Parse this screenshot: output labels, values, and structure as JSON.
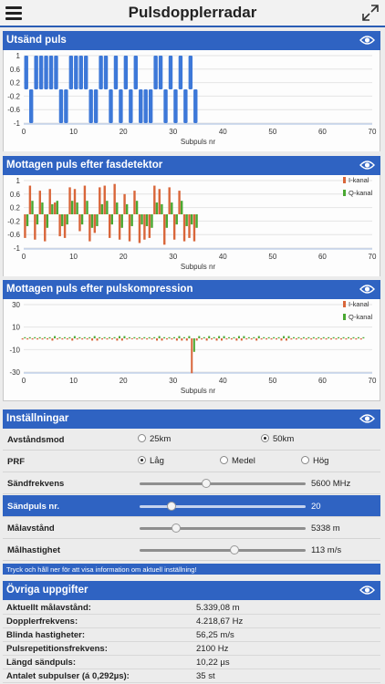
{
  "header": {
    "title": "Pulsdopplerradar"
  },
  "panels": {
    "tx": {
      "title": "Utsänd puls"
    },
    "rx": {
      "title": "Mottagen puls efter fasdetektor"
    },
    "comp": {
      "title": "Mottagen puls efter pulskompression"
    }
  },
  "colors": {
    "accent": "#2f63c2",
    "i_channel": "#d9663a",
    "q_channel": "#4aa832",
    "tx_pulse": "#3d78d8"
  },
  "chart_data": [
    {
      "type": "bar",
      "xlabel": "Subpuls nr",
      "xlim": [
        0,
        70
      ],
      "xticks": [
        0,
        10,
        20,
        30,
        40,
        50,
        60,
        70
      ],
      "yticks": [
        1,
        0.6,
        0.2,
        -0.2,
        -0.6,
        -1
      ],
      "ylim": [
        -1,
        1
      ],
      "series": [
        {
          "values": [
            1,
            -1,
            1,
            1,
            1,
            1,
            1,
            -1,
            -1,
            1,
            1,
            1,
            1,
            -1,
            -1,
            1,
            1,
            -1,
            1,
            -1,
            1,
            -1,
            1,
            -1,
            -1,
            -1,
            1,
            1,
            -1,
            1,
            -1,
            1,
            -1,
            1,
            -1
          ]
        }
      ]
    },
    {
      "type": "bar",
      "xlabel": "Subpuls nr",
      "xlim": [
        0,
        70
      ],
      "xticks": [
        0,
        10,
        20,
        30,
        40,
        50,
        60,
        70
      ],
      "yticks": [
        1,
        0.6,
        0.2,
        -0.2,
        -0.6,
        -1
      ],
      "ylim": [
        -1,
        1
      ],
      "legend": "top-right",
      "series": [
        {
          "name": "I-kanal",
          "values": [
            -0.7,
            0.85,
            -0.75,
            0.7,
            -0.8,
            0.75,
            0.35,
            -0.65,
            -0.7,
            0.8,
            0.75,
            -0.5,
            0.85,
            -0.8,
            -0.55,
            0.8,
            0.85,
            -0.7,
            0.9,
            -0.75,
            0.6,
            -0.8,
            0.7,
            -0.85,
            -0.75,
            -0.7,
            0.85,
            0.75,
            -0.9,
            0.8,
            -0.75,
            0.7,
            -0.8,
            -0.7,
            -0.8
          ]
        },
        {
          "name": "Q-kanal",
          "values": [
            -0.35,
            0.4,
            -0.3,
            0.35,
            -0.4,
            0.3,
            0.4,
            -0.35,
            -0.3,
            0.4,
            0.35,
            -0.3,
            0.4,
            -0.4,
            -0.35,
            0.3,
            0.4,
            -0.3,
            0.35,
            -0.4,
            0.3,
            -0.35,
            0.4,
            -0.3,
            -0.35,
            -0.4,
            0.35,
            0.3,
            -0.4,
            0.35,
            -0.3,
            0.4,
            -0.35,
            -0.3,
            -0.4
          ]
        }
      ]
    },
    {
      "type": "bar",
      "xlabel": "Subpuls nr",
      "xlim": [
        0,
        70
      ],
      "xticks": [
        0,
        10,
        20,
        30,
        40,
        50,
        60,
        70
      ],
      "yticks": [
        30,
        10,
        -10,
        -30
      ],
      "ylim": [
        -30,
        30
      ],
      "legend": "top-right",
      "series": [
        {
          "name": "I-kanal",
          "values": [
            -1,
            -1,
            -1,
            -1,
            -1,
            -1,
            -2,
            -1,
            -1,
            -1,
            -2,
            -1,
            -1,
            -1,
            -2,
            -2,
            -1,
            -1,
            -1,
            -2,
            -2,
            -1,
            0,
            -1,
            -1,
            -1,
            -1,
            -2,
            -2,
            -1,
            -1,
            -2,
            -2,
            -2,
            -31,
            -2,
            -1,
            -2,
            -1,
            -2,
            -2,
            -1,
            -1,
            -2,
            -2,
            -1,
            -1,
            -2,
            -1,
            -1,
            -1,
            -1,
            -2,
            -2,
            -1,
            -1,
            -1,
            -1,
            -1,
            -1,
            -1,
            -1,
            -1,
            -1,
            -1,
            -1,
            -1,
            -1,
            -1
          ]
        },
        {
          "name": "Q-kanal",
          "values": [
            1,
            1,
            1,
            1,
            1,
            1,
            2,
            1,
            1,
            1,
            2,
            1,
            1,
            1,
            2,
            1,
            1,
            1,
            1,
            2,
            2,
            1,
            1,
            1,
            1,
            1,
            1,
            2,
            1,
            1,
            1,
            2,
            1,
            2,
            -12,
            2,
            1,
            2,
            1,
            2,
            2,
            1,
            1,
            2,
            2,
            1,
            1,
            2,
            1,
            1,
            1,
            1,
            2,
            2,
            1,
            1,
            1,
            1,
            1,
            1,
            1,
            1,
            1,
            1,
            1,
            1,
            1,
            1,
            1
          ]
        }
      ]
    }
  ],
  "settings": {
    "title": "Inställningar",
    "avstandsmod": {
      "label": "Avståndsmod",
      "options": [
        "25km",
        "50km"
      ],
      "selected": "50km"
    },
    "prf": {
      "label": "PRF",
      "options": [
        "Låg",
        "Medel",
        "Hög"
      ],
      "selected": "Låg"
    },
    "sliders": [
      {
        "label": "Sändfrekvens",
        "value": "5600 MHz",
        "position": 0.4
      },
      {
        "label": "Sändpuls nr.",
        "value": "20",
        "position": 0.19
      },
      {
        "label": "Målavstånd",
        "value": "5338 m",
        "position": 0.22
      },
      {
        "label": "Målhastighet",
        "value": "113 m/s",
        "position": 0.57
      }
    ],
    "hint": "Tryck och håll ner för att visa information om aktuell inställning!"
  },
  "info": {
    "title": "Övriga uppgifter",
    "rows": [
      {
        "label": "Aktuellt målavstånd:",
        "value": "5.339,08 m"
      },
      {
        "label": "Dopplerfrekvens:",
        "value": "4.218,67 Hz"
      },
      {
        "label": "Blinda hastigheter:",
        "value": "56,25 m/s"
      },
      {
        "label": "Pulsrepetitionsfrekvens:",
        "value": "2100 Hz"
      },
      {
        "label": "Längd sändpuls:",
        "value": "10,22 µs"
      },
      {
        "label": "Antalet subpulser (á 0,292µs):",
        "value": "35 st"
      }
    ]
  }
}
